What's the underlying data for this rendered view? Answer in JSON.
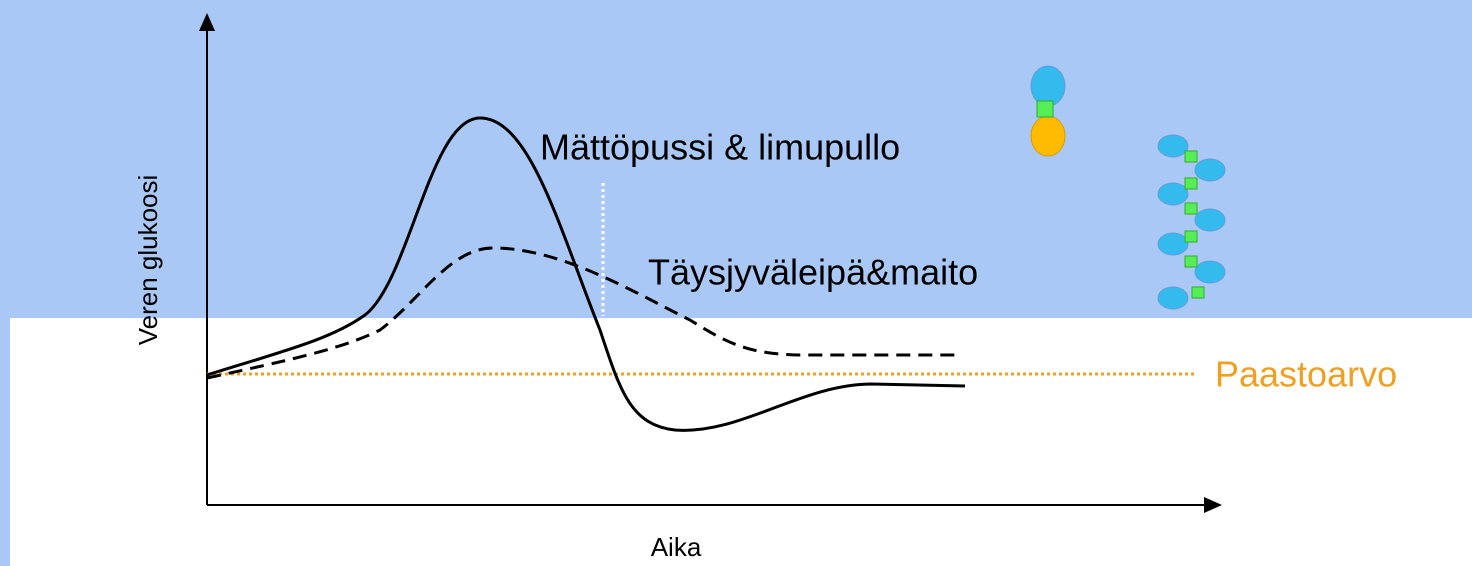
{
  "axes": {
    "y_label": "Veren glukoosi",
    "x_label": "Aika"
  },
  "curves": {
    "fast_food": "Mättöpussi & limupullo",
    "whole_grain": "Täysjyväleipä&maito"
  },
  "baseline": {
    "label": "Paastoarvo"
  }
}
